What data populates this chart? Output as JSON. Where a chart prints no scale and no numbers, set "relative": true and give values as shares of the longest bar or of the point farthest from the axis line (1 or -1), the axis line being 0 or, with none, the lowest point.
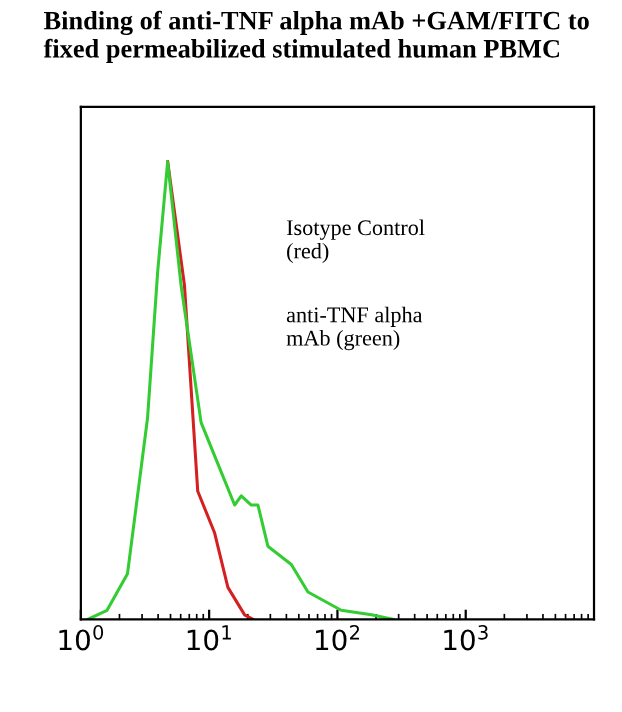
{
  "chart_data": {
    "type": "line",
    "title": "Binding of anti-TNF alpha mAb +GAM/FITC to fixed permeabilized stimulated human PBMC",
    "relative": true,
    "log": "x",
    "xlim": [
      1,
      10000
    ],
    "xticks": [
      {
        "value": 1,
        "label": "10$^{0}$"
      },
      {
        "value": 10,
        "label": "10$^{1}$"
      },
      {
        "value": 100,
        "label": "10$^{2}$"
      },
      {
        "value": 1000,
        "label": "10$^{3}$"
      }
    ],
    "tick_labels": "x",
    "grid": false,
    "legend": false,
    "annotations": [
      "Isotype Control\n(red)",
      "anti-TNF alpha\nmAb (green)"
    ],
    "series": [
      {
        "color": "#d42020",
        "x": [
          4.75,
          6.42,
          8.15,
          11.0,
          14.0,
          18.9,
          22
        ],
        "values": [
          1,
          0.73,
          0.28,
          0.19,
          0.07,
          0.01,
          0
        ]
      },
      {
        "color": "#33cc33",
        "x": [
          1.13,
          1.6,
          2.31,
          3.31,
          3.97,
          4.75,
          6.04,
          8.66,
          11.7,
          15.8,
          17.8,
          21.3,
          24.0,
          28.7,
          43.7,
          58.9,
          107,
          184,
          274
        ],
        "values": [
          0,
          0.02,
          0.1,
          0.44,
          0.76,
          1,
          0.73,
          0.43,
          0.34,
          0.25,
          0.27,
          0.25,
          0.25,
          0.16,
          0.12,
          0.06,
          0.02,
          0.01,
          0
        ]
      }
    ]
  }
}
